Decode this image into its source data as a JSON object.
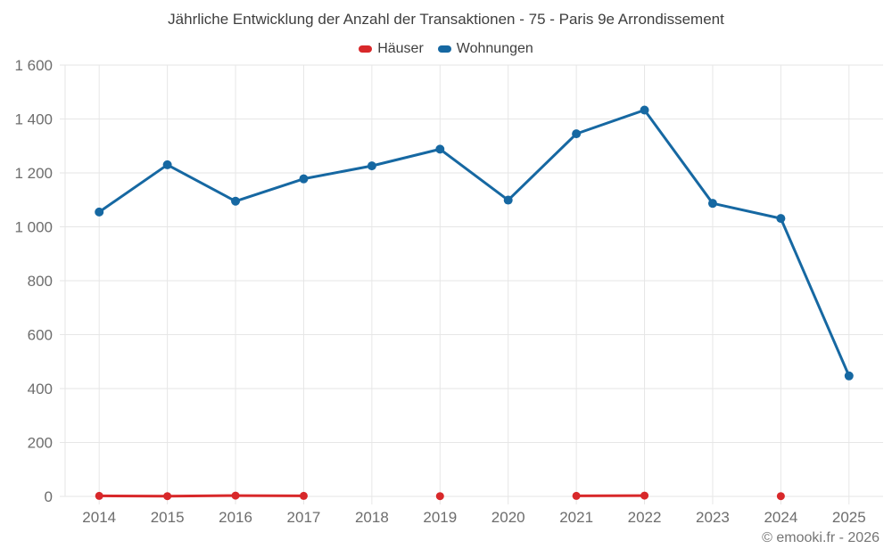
{
  "header": {
    "title": "Jährliche Entwicklung der Anzahl der Transaktionen - 75 - Paris 9e Arrondissement"
  },
  "legend": {
    "items": [
      {
        "label": "Häuser",
        "color": "#d8282a"
      },
      {
        "label": "Wohnungen",
        "color": "#1668a2"
      }
    ]
  },
  "footer": {
    "credit": "© emooki.fr - 2026"
  },
  "chart_data": {
    "type": "line",
    "title": "Jährliche Entwicklung der Anzahl der Transaktionen - 75 - Paris 9e Arrondissement",
    "xlabel": "",
    "ylabel": "",
    "categories": [
      "2014",
      "2015",
      "2016",
      "2017",
      "2018",
      "2019",
      "2020",
      "2021",
      "2022",
      "2023",
      "2024",
      "2025"
    ],
    "series": [
      {
        "id": "haeuser",
        "name": "Häuser",
        "color": "#d8282a",
        "values": [
          2,
          1,
          3,
          2,
          null,
          1,
          null,
          2,
          3,
          null,
          1,
          null
        ]
      },
      {
        "id": "wohnungen",
        "name": "Wohnungen",
        "color": "#1668a2",
        "values": [
          1055,
          1230,
          1095,
          1178,
          1226,
          1288,
          1099,
          1345,
          1433,
          1087,
          1031,
          447
        ]
      }
    ],
    "ylim": [
      0,
      1600
    ],
    "y_ticks": [
      {
        "value": 0,
        "label": "0"
      },
      {
        "value": 200,
        "label": "200"
      },
      {
        "value": 400,
        "label": "400"
      },
      {
        "value": 600,
        "label": "600"
      },
      {
        "value": 800,
        "label": "800"
      },
      {
        "value": 1000,
        "label": "1 000"
      },
      {
        "value": 1200,
        "label": "1 200"
      },
      {
        "value": 1400,
        "label": "1 400"
      },
      {
        "value": 1600,
        "label": "1 600"
      }
    ],
    "grid": true,
    "legend_position": "top"
  }
}
